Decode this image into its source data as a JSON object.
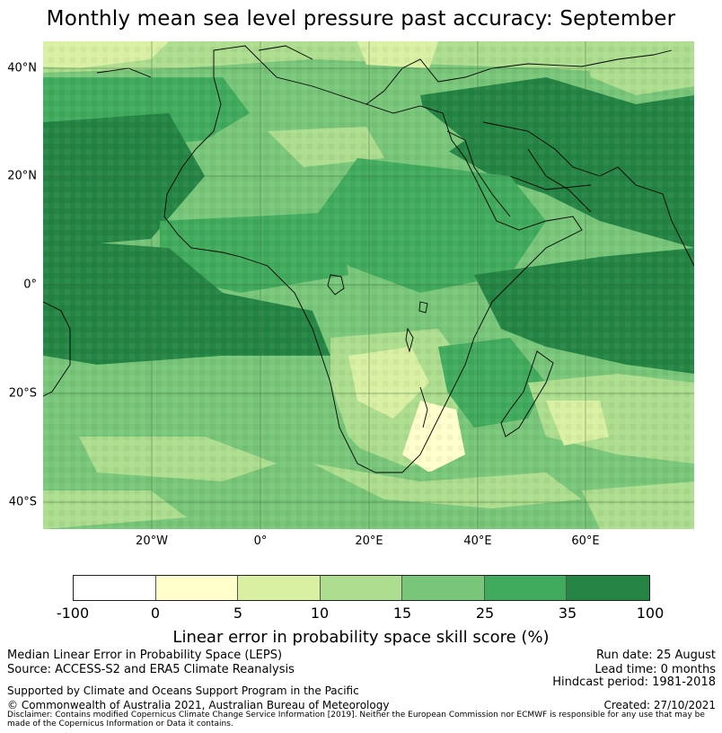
{
  "title": "Monthly mean sea level pressure past accuracy: September",
  "map": {
    "lat_labels": [
      "40°N",
      "20°N",
      "0°",
      "20°S",
      "40°S"
    ],
    "lon_labels": [
      "20°W",
      "0°",
      "20°E",
      "40°E",
      "60°E"
    ],
    "extent": {
      "lon": [
        -40,
        80
      ],
      "lat": [
        -45,
        45
      ]
    },
    "gridlines": true
  },
  "colorbar": {
    "ticks": [
      "-100",
      "0",
      "5",
      "10",
      "15",
      "25",
      "35",
      "100"
    ],
    "colors": [
      "#ffffff",
      "#ffffcc",
      "#d9f0a3",
      "#addd8e",
      "#78c679",
      "#41ab5d",
      "#238443"
    ],
    "label": "Linear error in probability space skill score (%)"
  },
  "footer": {
    "left_line1": "Median Linear Error in Probability Space (LEPS)",
    "left_line2": "Source: ACCESS-S2 and ERA5 Climate Reanalysis",
    "left_line3": "Supported by Climate and Oceans Support Program in the Pacific",
    "left_line4": "© Commonwealth of Australia 2021, Australian Bureau of Meteorology",
    "right_line1": "Run date: 25 August",
    "right_line2": "Lead time: 0 months",
    "right_line3": "Hindcast period: 1981-2018",
    "right_line4": "Created: 27/10/2021",
    "disclaimer": "Disclaimer: Contains modified Copernicus Climate Change Service Information [2019]. Neither the European Commission nor ECMWF is responsible for any use that may be made of the Copernicus Information or Data it contains."
  }
}
